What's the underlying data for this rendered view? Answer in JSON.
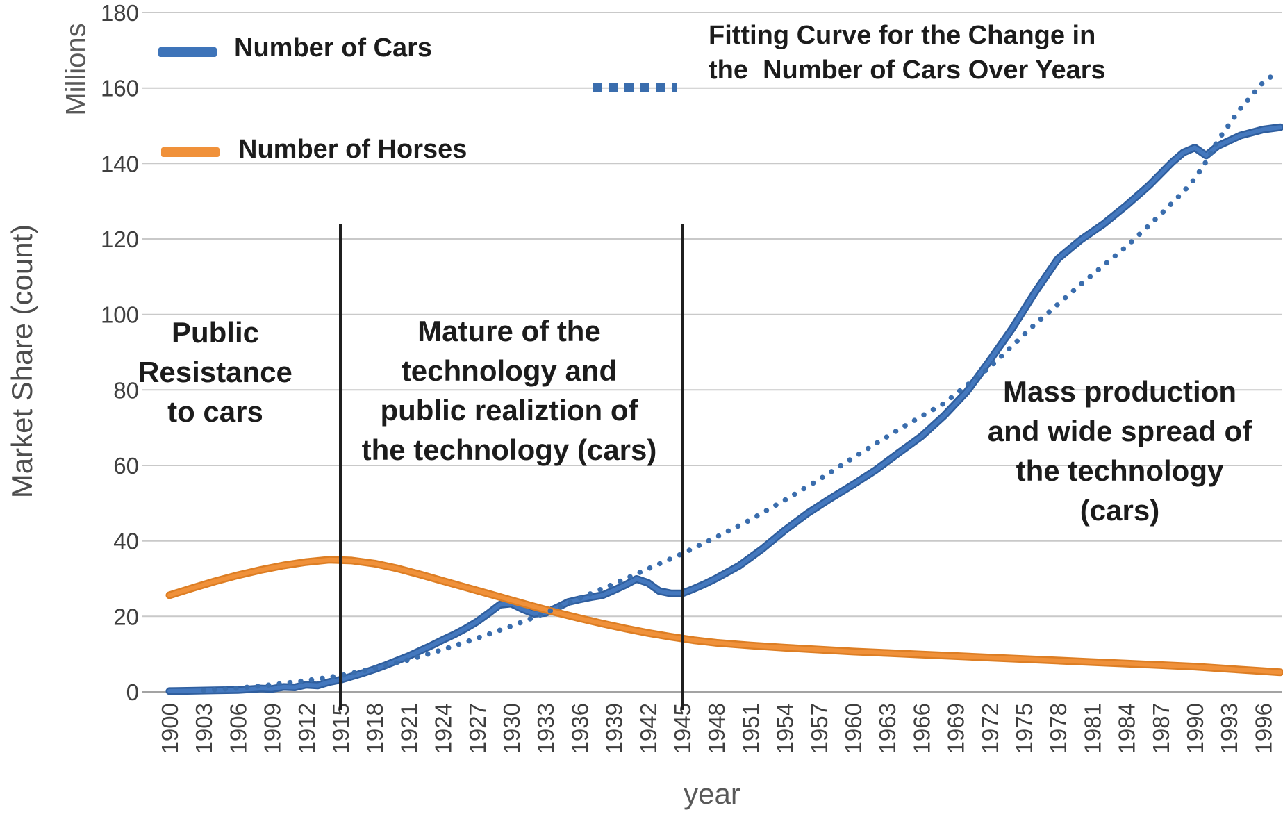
{
  "figure": {
    "legend": {
      "cars_label": "Number of Cars",
      "horses_label": "Number of Horses",
      "fit_label_line1": "Fitting Curve for the Change in",
      "fit_label_line2": "the  Number of Cars Over Years"
    },
    "axes": {
      "x_title": "year",
      "y_title": "Market Share (count)",
      "y_unit": "Millions"
    }
  },
  "chart_data": {
    "type": "line",
    "title": "",
    "xlabel": "year",
    "ylabel": "Market Share (count)",
    "y_unit": "Millions",
    "xlim": [
      1899.5,
      1998
    ],
    "ylim": [
      0,
      180
    ],
    "grid": true,
    "legend_position": "top",
    "y_ticks": [
      0,
      20,
      40,
      60,
      80,
      100,
      120,
      140,
      160,
      180
    ],
    "x_ticks": [
      1900,
      1903,
      1906,
      1909,
      1912,
      1915,
      1918,
      1921,
      1924,
      1927,
      1930,
      1933,
      1936,
      1939,
      1942,
      1945,
      1948,
      1951,
      1954,
      1957,
      1960,
      1963,
      1966,
      1969,
      1972,
      1975,
      1978,
      1981,
      1984,
      1987,
      1990,
      1993,
      1996
    ],
    "vertical_lines": [
      1915,
      1945
    ],
    "annotations": [
      {
        "lines": [
          "Public",
          "Resistance",
          "to cars"
        ],
        "x_range_years": [
          1900,
          1915
        ]
      },
      {
        "lines": [
          "Mature of the",
          "technology and",
          "public realiztion of",
          "the technology  (cars)"
        ],
        "x_range_years": [
          1915,
          1945
        ]
      },
      {
        "lines": [
          "Mass production",
          "and wide spread of",
          "the technology",
          "(cars)"
        ],
        "x_range_years": [
          1945,
          1997
        ]
      }
    ],
    "series": [
      {
        "id": "cars",
        "name": "Number of Cars",
        "style": "solid",
        "color": "#4478be",
        "color_dark": "#2f5e9e",
        "points": [
          [
            1900,
            0.2
          ],
          [
            1902,
            0.3
          ],
          [
            1904,
            0.4
          ],
          [
            1906,
            0.5
          ],
          [
            1907,
            0.7
          ],
          [
            1908,
            0.9
          ],
          [
            1909,
            0.8
          ],
          [
            1910,
            1.3
          ],
          [
            1911,
            1.2
          ],
          [
            1912,
            1.9
          ],
          [
            1913,
            1.7
          ],
          [
            1914,
            2.6
          ],
          [
            1915,
            3.2
          ],
          [
            1916,
            4.1
          ],
          [
            1917,
            5.0
          ],
          [
            1918,
            6.0
          ],
          [
            1919,
            7.1
          ],
          [
            1920,
            8.3
          ],
          [
            1921,
            9.5
          ],
          [
            1922,
            10.9
          ],
          [
            1923,
            12.3
          ],
          [
            1924,
            13.8
          ],
          [
            1925,
            15.2
          ],
          [
            1926,
            16.8
          ],
          [
            1927,
            18.6
          ],
          [
            1928,
            20.8
          ],
          [
            1929,
            23.1
          ],
          [
            1930,
            23.4
          ],
          [
            1931,
            21.9
          ],
          [
            1932,
            20.7
          ],
          [
            1933,
            20.9
          ],
          [
            1934,
            22.3
          ],
          [
            1935,
            23.8
          ],
          [
            1936,
            24.5
          ],
          [
            1937,
            25.1
          ],
          [
            1938,
            25.6
          ],
          [
            1939,
            26.9
          ],
          [
            1940,
            28.3
          ],
          [
            1941,
            29.9
          ],
          [
            1942,
            28.9
          ],
          [
            1943,
            26.7
          ],
          [
            1944,
            26.1
          ],
          [
            1945,
            26.1
          ],
          [
            1946,
            27.3
          ],
          [
            1947,
            28.6
          ],
          [
            1948,
            30.1
          ],
          [
            1950,
            33.4
          ],
          [
            1952,
            37.8
          ],
          [
            1954,
            42.8
          ],
          [
            1956,
            47.3
          ],
          [
            1958,
            51.2
          ],
          [
            1960,
            54.9
          ],
          [
            1962,
            58.8
          ],
          [
            1964,
            63.3
          ],
          [
            1966,
            67.7
          ],
          [
            1968,
            73.2
          ],
          [
            1970,
            79.6
          ],
          [
            1972,
            87.8
          ],
          [
            1974,
            96.4
          ],
          [
            1976,
            106.0
          ],
          [
            1978,
            114.8
          ],
          [
            1980,
            119.8
          ],
          [
            1982,
            124.0
          ],
          [
            1984,
            128.9
          ],
          [
            1986,
            134.2
          ],
          [
            1988,
            140.3
          ],
          [
            1989,
            142.9
          ],
          [
            1990,
            144.2
          ],
          [
            1991,
            142.1
          ],
          [
            1992,
            144.6
          ],
          [
            1994,
            147.4
          ],
          [
            1996,
            149.0
          ],
          [
            1997.5,
            149.6
          ]
        ]
      },
      {
        "id": "horses",
        "name": "Number of Horses",
        "style": "solid",
        "color": "#f0913a",
        "color_dark": "#dd7e24",
        "points": [
          [
            1900,
            25.6
          ],
          [
            1902,
            27.5
          ],
          [
            1904,
            29.3
          ],
          [
            1906,
            30.9
          ],
          [
            1908,
            32.3
          ],
          [
            1910,
            33.5
          ],
          [
            1912,
            34.4
          ],
          [
            1914,
            35.0
          ],
          [
            1916,
            34.8
          ],
          [
            1918,
            34.0
          ],
          [
            1920,
            32.7
          ],
          [
            1922,
            31.1
          ],
          [
            1924,
            29.4
          ],
          [
            1926,
            27.7
          ],
          [
            1928,
            26.0
          ],
          [
            1930,
            24.3
          ],
          [
            1932,
            22.6
          ],
          [
            1934,
            21.0
          ],
          [
            1936,
            19.5
          ],
          [
            1938,
            18.1
          ],
          [
            1940,
            16.8
          ],
          [
            1942,
            15.6
          ],
          [
            1944,
            14.6
          ],
          [
            1946,
            13.7
          ],
          [
            1948,
            13.0
          ],
          [
            1951,
            12.3
          ],
          [
            1954,
            11.7
          ],
          [
            1957,
            11.2
          ],
          [
            1960,
            10.7
          ],
          [
            1963,
            10.3
          ],
          [
            1966,
            9.9
          ],
          [
            1969,
            9.5
          ],
          [
            1972,
            9.1
          ],
          [
            1975,
            8.7
          ],
          [
            1978,
            8.3
          ],
          [
            1981,
            7.9
          ],
          [
            1984,
            7.5
          ],
          [
            1987,
            7.1
          ],
          [
            1990,
            6.7
          ],
          [
            1993,
            6.1
          ],
          [
            1996,
            5.5
          ],
          [
            1997.5,
            5.2
          ]
        ]
      },
      {
        "id": "fit",
        "name": "Fitting Curve for the Change in the  Number of Cars Over Years",
        "style": "dotted",
        "color": "#3a6dad",
        "color_dark": "#3a6dad",
        "points": [
          [
            1903,
            0.4
          ],
          [
            1906,
            1.0
          ],
          [
            1909,
            1.9
          ],
          [
            1912,
            3.0
          ],
          [
            1915,
            4.3
          ],
          [
            1918,
            6.2
          ],
          [
            1921,
            8.5
          ],
          [
            1924,
            11.2
          ],
          [
            1927,
            14.2
          ],
          [
            1930,
            17.4
          ],
          [
            1933,
            20.9
          ],
          [
            1936,
            24.8
          ],
          [
            1939,
            28.6
          ],
          [
            1942,
            32.6
          ],
          [
            1945,
            36.6
          ],
          [
            1948,
            41.0
          ],
          [
            1951,
            45.6
          ],
          [
            1954,
            50.8
          ],
          [
            1957,
            56.2
          ],
          [
            1960,
            62.0
          ],
          [
            1964,
            69.5
          ],
          [
            1968,
            76.5
          ],
          [
            1972,
            86.0
          ],
          [
            1976,
            97.5
          ],
          [
            1980,
            108.0
          ],
          [
            1984,
            118.0
          ],
          [
            1987,
            126.5
          ],
          [
            1989,
            132.5
          ],
          [
            1990,
            136.0
          ],
          [
            1991,
            140.5
          ],
          [
            1992,
            146.0
          ],
          [
            1994,
            154.5
          ],
          [
            1996,
            161.5
          ],
          [
            1997.4,
            164.5
          ]
        ]
      }
    ]
  },
  "colors": {
    "gridline": "#c9c9c9",
    "zero_axis": "#a3a3a3",
    "tick_text": "#3f3f3f",
    "phase_line": "#1f1f1f",
    "cars_blue": "#4478be",
    "horses_orange": "#f0913a",
    "fit_blue": "#3a6dad"
  }
}
